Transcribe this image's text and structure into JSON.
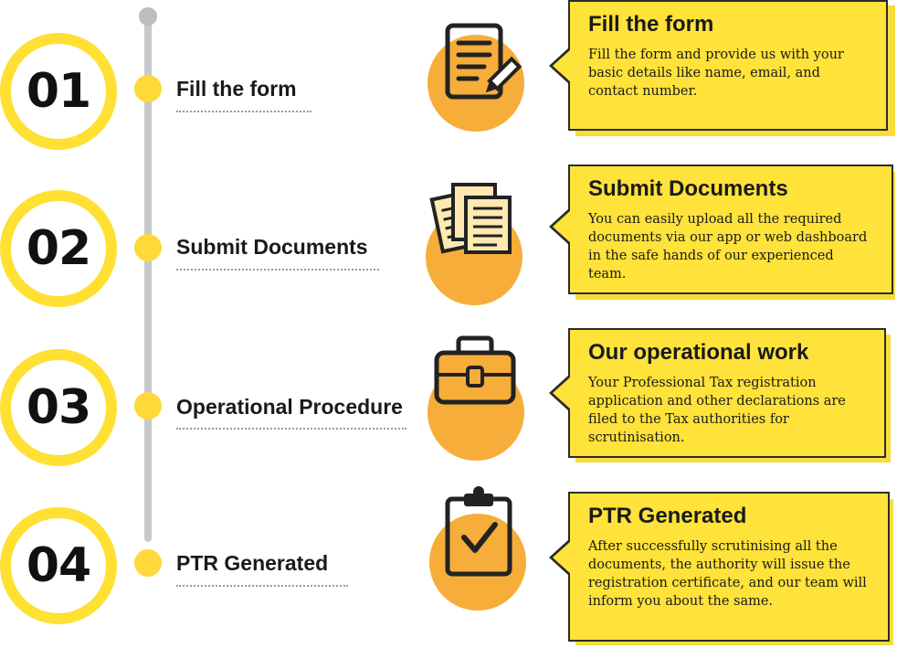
{
  "steps": [
    {
      "number": "01",
      "label": "Fill the form",
      "icon": "form-icon",
      "card_title": "Fill the form",
      "card_body": "Fill the form and provide us with your basic details like name, email, and contact number."
    },
    {
      "number": "02",
      "label": "Submit Documents",
      "icon": "documents-icon",
      "card_title": "Submit Documents",
      "card_body": "You can easily upload all the required documents via our app or web dashboard in the safe hands of our experienced team."
    },
    {
      "number": "03",
      "label": "Operational Procedure",
      "icon": "briefcase-icon",
      "card_title": "Our operational work",
      "card_body": "Your Professional Tax registration application and other declarations are filed to the Tax authorities for scrutinisation."
    },
    {
      "number": "04",
      "label": "PTR Generated",
      "icon": "clipboard-check-icon",
      "card_title": "PTR Generated",
      "card_body": "After successfully scrutinising all the documents, the authority will issue the registration certificate, and our team will inform you about the same."
    }
  ],
  "colors": {
    "yellow": "#ffe23a",
    "orange": "#f7ad39",
    "line": "#c8c8c8",
    "text": "#1a1a1a"
  }
}
